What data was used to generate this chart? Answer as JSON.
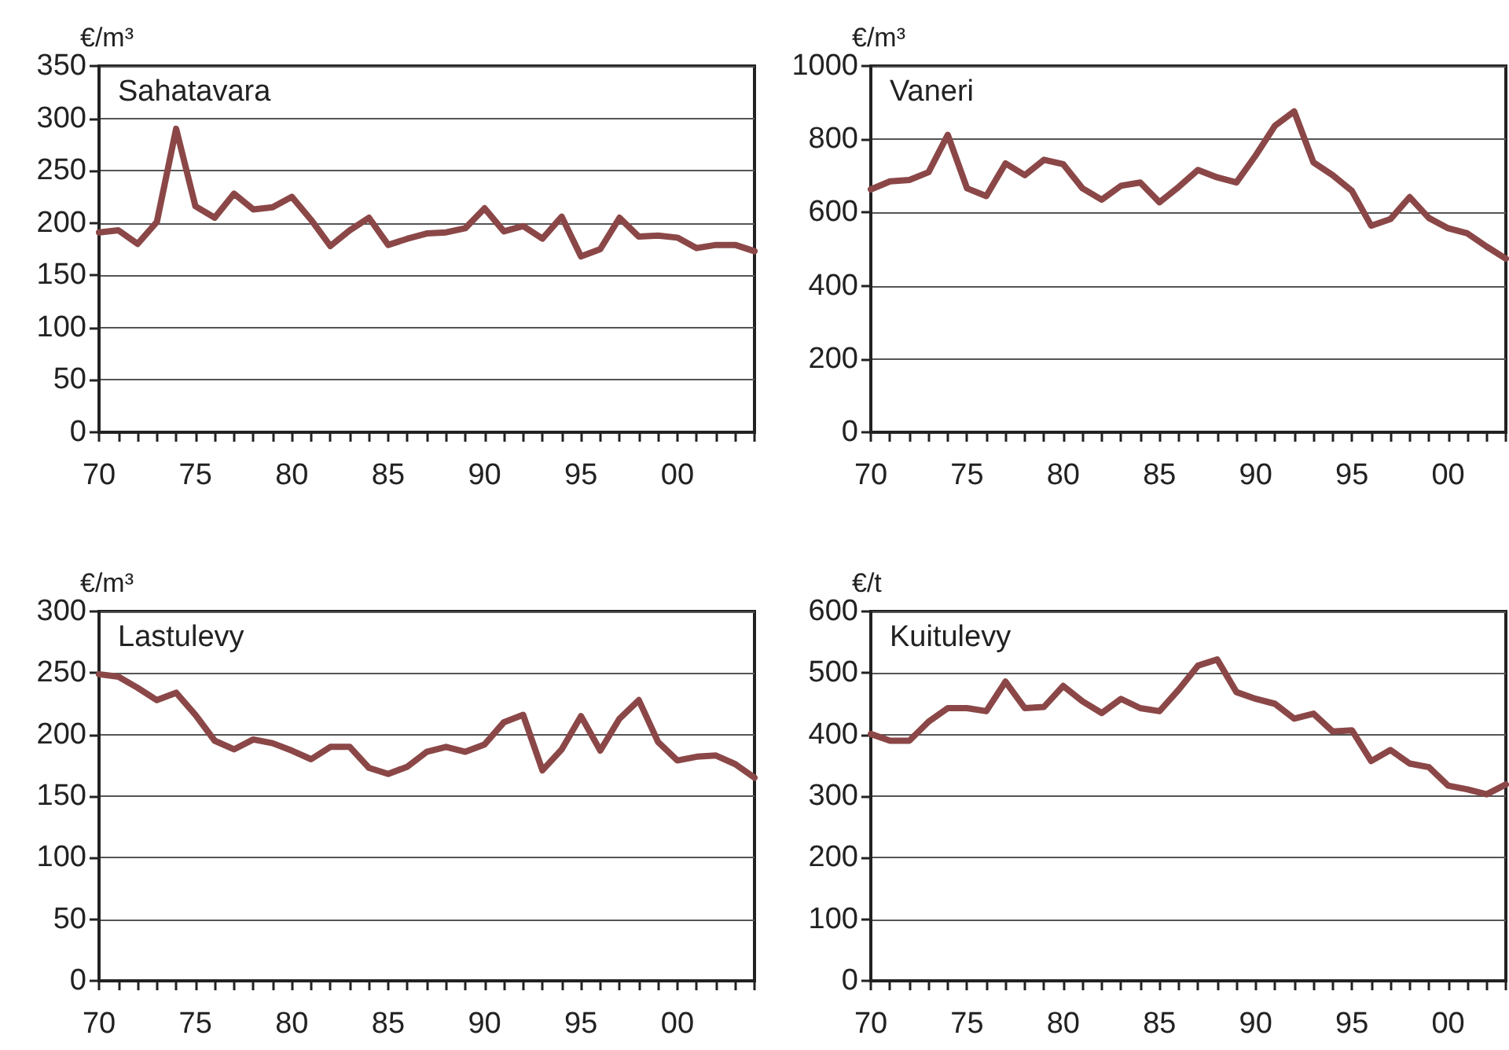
{
  "chart_data": [
    {
      "type": "line",
      "title": "Sahatavara",
      "ylabel": "€/m³",
      "color": "#8b4747",
      "marker": "none",
      "grid": "y",
      "x": [
        1970,
        1971,
        1972,
        1973,
        1974,
        1975,
        1976,
        1977,
        1978,
        1979,
        1980,
        1981,
        1982,
        1983,
        1984,
        1985,
        1986,
        1987,
        1988,
        1989,
        1990,
        1991,
        1992,
        1993,
        1994,
        1995,
        1996,
        1997,
        1998,
        1999,
        2000,
        2001,
        2002,
        2003,
        2004
      ],
      "values": [
        191,
        193,
        180,
        201,
        290,
        216,
        205,
        228,
        213,
        215,
        225,
        203,
        178,
        193,
        205,
        179,
        185,
        190,
        191,
        195,
        214,
        192,
        197,
        185,
        206,
        168,
        175,
        205,
        187,
        188,
        186,
        176,
        179,
        179,
        173
      ],
      "xlim": [
        1970,
        2004
      ],
      "ylim": [
        0,
        350
      ],
      "yticks": [
        0,
        50,
        100,
        150,
        200,
        250,
        300,
        350
      ],
      "xticks": [
        {
          "value": 1970,
          "label": "70"
        },
        {
          "value": 1971,
          "label": null
        },
        {
          "value": 1972,
          "label": null
        },
        {
          "value": 1973,
          "label": null
        },
        {
          "value": 1974,
          "label": null
        },
        {
          "value": 1975,
          "label": "75"
        },
        {
          "value": 1976,
          "label": null
        },
        {
          "value": 1977,
          "label": null
        },
        {
          "value": 1978,
          "label": null
        },
        {
          "value": 1979,
          "label": null
        },
        {
          "value": 1980,
          "label": "80"
        },
        {
          "value": 1981,
          "label": null
        },
        {
          "value": 1982,
          "label": null
        },
        {
          "value": 1983,
          "label": null
        },
        {
          "value": 1984,
          "label": null
        },
        {
          "value": 1985,
          "label": "85"
        },
        {
          "value": 1986,
          "label": null
        },
        {
          "value": 1987,
          "label": null
        },
        {
          "value": 1988,
          "label": null
        },
        {
          "value": 1989,
          "label": null
        },
        {
          "value": 1990,
          "label": "90"
        },
        {
          "value": 1991,
          "label": null
        },
        {
          "value": 1992,
          "label": null
        },
        {
          "value": 1993,
          "label": null
        },
        {
          "value": 1994,
          "label": null
        },
        {
          "value": 1995,
          "label": "95"
        },
        {
          "value": 1996,
          "label": null
        },
        {
          "value": 1997,
          "label": null
        },
        {
          "value": 1998,
          "label": null
        },
        {
          "value": 1999,
          "label": null
        },
        {
          "value": 2000,
          "label": "00"
        },
        {
          "value": 2001,
          "label": null
        },
        {
          "value": 2002,
          "label": null
        },
        {
          "value": 2003,
          "label": null
        },
        {
          "value": 2004,
          "label": null
        }
      ]
    },
    {
      "type": "line",
      "title": "Vaneri",
      "ylabel": "€/m³",
      "color": "#8b4747",
      "marker": "none",
      "grid": "y",
      "x": [
        1970,
        1971,
        1972,
        1973,
        1974,
        1975,
        1976,
        1977,
        1978,
        1979,
        1980,
        1981,
        1982,
        1983,
        1984,
        1985,
        1986,
        1987,
        1988,
        1989,
        1990,
        1991,
        1992,
        1993,
        1994,
        1995,
        1996,
        1997,
        1998,
        1999,
        2000,
        2001,
        2002,
        2003
      ],
      "values": [
        663,
        685,
        689,
        710,
        812,
        666,
        645,
        734,
        702,
        744,
        732,
        666,
        635,
        673,
        682,
        628,
        670,
        716,
        696,
        682,
        756,
        837,
        876,
        737,
        702,
        659,
        564,
        582,
        642,
        585,
        557,
        543,
        507,
        474
      ],
      "xlim": [
        1970,
        2003
      ],
      "ylim": [
        0,
        1000
      ],
      "yticks": [
        0,
        200,
        400,
        600,
        800,
        1000
      ],
      "xticks": [
        {
          "value": 1970,
          "label": "70"
        },
        {
          "value": 1971,
          "label": null
        },
        {
          "value": 1972,
          "label": null
        },
        {
          "value": 1973,
          "label": null
        },
        {
          "value": 1974,
          "label": null
        },
        {
          "value": 1975,
          "label": "75"
        },
        {
          "value": 1976,
          "label": null
        },
        {
          "value": 1977,
          "label": null
        },
        {
          "value": 1978,
          "label": null
        },
        {
          "value": 1979,
          "label": null
        },
        {
          "value": 1980,
          "label": "80"
        },
        {
          "value": 1981,
          "label": null
        },
        {
          "value": 1982,
          "label": null
        },
        {
          "value": 1983,
          "label": null
        },
        {
          "value": 1984,
          "label": null
        },
        {
          "value": 1985,
          "label": "85"
        },
        {
          "value": 1986,
          "label": null
        },
        {
          "value": 1987,
          "label": null
        },
        {
          "value": 1988,
          "label": null
        },
        {
          "value": 1989,
          "label": null
        },
        {
          "value": 1990,
          "label": "90"
        },
        {
          "value": 1991,
          "label": null
        },
        {
          "value": 1992,
          "label": null
        },
        {
          "value": 1993,
          "label": null
        },
        {
          "value": 1994,
          "label": null
        },
        {
          "value": 1995,
          "label": "95"
        },
        {
          "value": 1996,
          "label": null
        },
        {
          "value": 1997,
          "label": null
        },
        {
          "value": 1998,
          "label": null
        },
        {
          "value": 1999,
          "label": null
        },
        {
          "value": 2000,
          "label": "00"
        },
        {
          "value": 2001,
          "label": null
        },
        {
          "value": 2002,
          "label": null
        },
        {
          "value": 2003,
          "label": null
        }
      ]
    },
    {
      "type": "line",
      "title": "Lastulevy",
      "ylabel": "€/m³",
      "color": "#8b4747",
      "marker": "none",
      "grid": "y",
      "x": [
        1970,
        1971,
        1972,
        1973,
        1974,
        1975,
        1976,
        1977,
        1978,
        1979,
        1980,
        1981,
        1982,
        1983,
        1984,
        1985,
        1986,
        1987,
        1988,
        1989,
        1990,
        1991,
        1992,
        1993,
        1994,
        1995,
        1996,
        1997,
        1998,
        1999,
        2000,
        2001,
        2002,
        2003,
        2004
      ],
      "values": [
        249,
        247,
        238,
        228,
        234,
        216,
        195,
        188,
        196,
        193,
        187,
        180,
        190,
        190,
        173,
        168,
        174,
        186,
        190,
        186,
        192,
        210,
        216,
        171,
        188,
        215,
        187,
        213,
        228,
        194,
        179,
        182,
        183,
        176,
        165
      ],
      "xlim": [
        1970,
        2004
      ],
      "ylim": [
        0,
        300
      ],
      "yticks": [
        0,
        50,
        100,
        150,
        200,
        250,
        300
      ],
      "xticks": [
        {
          "value": 1970,
          "label": "70"
        },
        {
          "value": 1971,
          "label": null
        },
        {
          "value": 1972,
          "label": null
        },
        {
          "value": 1973,
          "label": null
        },
        {
          "value": 1974,
          "label": null
        },
        {
          "value": 1975,
          "label": "75"
        },
        {
          "value": 1976,
          "label": null
        },
        {
          "value": 1977,
          "label": null
        },
        {
          "value": 1978,
          "label": null
        },
        {
          "value": 1979,
          "label": null
        },
        {
          "value": 1980,
          "label": "80"
        },
        {
          "value": 1981,
          "label": null
        },
        {
          "value": 1982,
          "label": null
        },
        {
          "value": 1983,
          "label": null
        },
        {
          "value": 1984,
          "label": null
        },
        {
          "value": 1985,
          "label": "85"
        },
        {
          "value": 1986,
          "label": null
        },
        {
          "value": 1987,
          "label": null
        },
        {
          "value": 1988,
          "label": null
        },
        {
          "value": 1989,
          "label": null
        },
        {
          "value": 1990,
          "label": "90"
        },
        {
          "value": 1991,
          "label": null
        },
        {
          "value": 1992,
          "label": null
        },
        {
          "value": 1993,
          "label": null
        },
        {
          "value": 1994,
          "label": null
        },
        {
          "value": 1995,
          "label": "95"
        },
        {
          "value": 1996,
          "label": null
        },
        {
          "value": 1997,
          "label": null
        },
        {
          "value": 1998,
          "label": null
        },
        {
          "value": 1999,
          "label": null
        },
        {
          "value": 2000,
          "label": "00"
        },
        {
          "value": 2001,
          "label": null
        },
        {
          "value": 2002,
          "label": null
        },
        {
          "value": 2003,
          "label": null
        },
        {
          "value": 2004,
          "label": null
        }
      ]
    },
    {
      "type": "line",
      "title": "Kuitulevy",
      "ylabel": "€/t",
      "color": "#8b4747",
      "marker": "none",
      "grid": "y",
      "x": [
        1970,
        1971,
        1972,
        1973,
        1974,
        1975,
        1976,
        1977,
        1978,
        1979,
        1980,
        1981,
        1982,
        1983,
        1984,
        1985,
        1986,
        1987,
        1988,
        1989,
        1990,
        1991,
        1992,
        1993,
        1994,
        1995,
        1996,
        1997,
        1998,
        1999,
        2000,
        2001,
        2002,
        2003
      ],
      "values": [
        401,
        390,
        390,
        421,
        443,
        443,
        438,
        486,
        443,
        445,
        479,
        454,
        435,
        458,
        443,
        438,
        473,
        512,
        522,
        469,
        458,
        450,
        426,
        434,
        405,
        407,
        357,
        375,
        353,
        347,
        317,
        311,
        303,
        319
      ],
      "xlim": [
        1970,
        2003
      ],
      "ylim": [
        0,
        600
      ],
      "yticks": [
        0,
        100,
        200,
        300,
        400,
        500,
        600
      ],
      "xticks": [
        {
          "value": 1970,
          "label": "70"
        },
        {
          "value": 1971,
          "label": null
        },
        {
          "value": 1972,
          "label": null
        },
        {
          "value": 1973,
          "label": null
        },
        {
          "value": 1974,
          "label": null
        },
        {
          "value": 1975,
          "label": "75"
        },
        {
          "value": 1976,
          "label": null
        },
        {
          "value": 1977,
          "label": null
        },
        {
          "value": 1978,
          "label": null
        },
        {
          "value": 1979,
          "label": null
        },
        {
          "value": 1980,
          "label": "80"
        },
        {
          "value": 1981,
          "label": null
        },
        {
          "value": 1982,
          "label": null
        },
        {
          "value": 1983,
          "label": null
        },
        {
          "value": 1984,
          "label": null
        },
        {
          "value": 1985,
          "label": "85"
        },
        {
          "value": 1986,
          "label": null
        },
        {
          "value": 1987,
          "label": null
        },
        {
          "value": 1988,
          "label": null
        },
        {
          "value": 1989,
          "label": null
        },
        {
          "value": 1990,
          "label": "90"
        },
        {
          "value": 1991,
          "label": null
        },
        {
          "value": 1992,
          "label": null
        },
        {
          "value": 1993,
          "label": null
        },
        {
          "value": 1994,
          "label": null
        },
        {
          "value": 1995,
          "label": "95"
        },
        {
          "value": 1996,
          "label": null
        },
        {
          "value": 1997,
          "label": null
        },
        {
          "value": 1998,
          "label": null
        },
        {
          "value": 1999,
          "label": null
        },
        {
          "value": 2000,
          "label": "00"
        },
        {
          "value": 2001,
          "label": null
        },
        {
          "value": 2002,
          "label": null
        },
        {
          "value": 2003,
          "label": null
        }
      ]
    }
  ]
}
